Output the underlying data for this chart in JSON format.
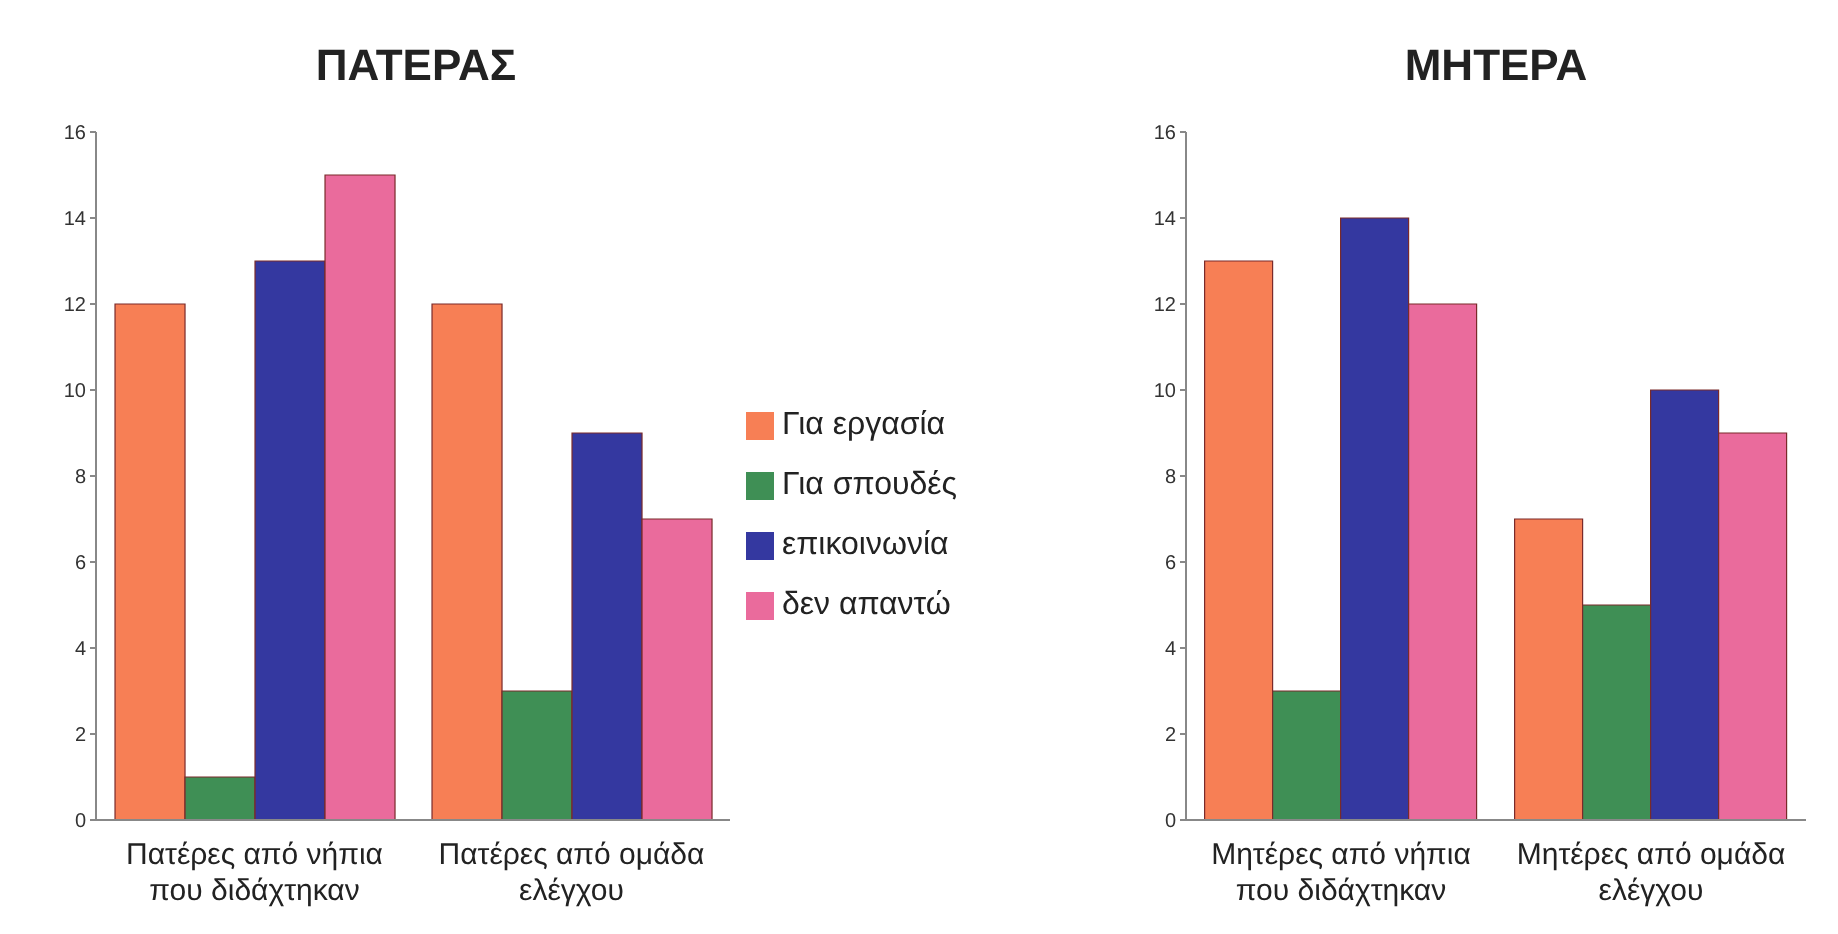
{
  "chart_data": [
    {
      "type": "bar",
      "title": "ΠΑΤΕΡΑΣ",
      "categories": [
        "Πατέρες από νήπια που διδάχτηκαν",
        "Πατέρες από ομάδα ελέγχου"
      ],
      "series": [
        {
          "name": "Για εργασία",
          "color": "#f77f55",
          "values": [
            12,
            12
          ]
        },
        {
          "name": "Για σπουδές",
          "color": "#3f8f55",
          "values": [
            1,
            3
          ]
        },
        {
          "name": "επικοινωνία",
          "color": "#3438a0",
          "values": [
            13,
            9
          ]
        },
        {
          "name": "δεν απαντώ",
          "color": "#ea6b9c",
          "values": [
            15,
            7
          ]
        }
      ],
      "ylim": [
        0,
        16
      ],
      "yticks": [
        0,
        2,
        4,
        6,
        8,
        10,
        12,
        14,
        16
      ],
      "grid": false,
      "legend": "right"
    },
    {
      "type": "bar",
      "title": "ΜΗΤΕΡΑ",
      "categories": [
        "Μητέρες από νήπια που διδάχτηκαν",
        "Μητέρες από ομάδα ελέγχου"
      ],
      "series": [
        {
          "color": "#f77f55",
          "values": [
            13,
            7
          ]
        },
        {
          "color": "#3f8f55",
          "values": [
            3,
            5
          ]
        },
        {
          "color": "#3438a0",
          "values": [
            14,
            10
          ]
        },
        {
          "color": "#ea6b9c",
          "values": [
            12,
            9
          ]
        }
      ],
      "ylim": [
        0,
        16
      ],
      "yticks": [
        0,
        2,
        4,
        6,
        8,
        10,
        12,
        14,
        16
      ],
      "grid": false
    }
  ]
}
